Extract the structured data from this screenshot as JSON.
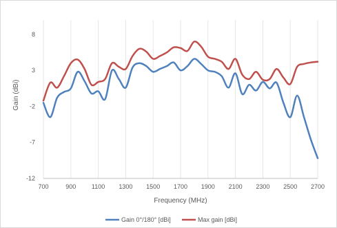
{
  "chart_data": {
    "type": "line",
    "title": "",
    "xlabel": "Frequency (MHz)",
    "ylabel": "Gain (dBi)",
    "xlim": [
      700,
      2700
    ],
    "ylim": [
      -12,
      10
    ],
    "xticks": [
      700,
      900,
      1100,
      1300,
      1500,
      1700,
      1900,
      2100,
      2300,
      2500,
      2700
    ],
    "yticks": [
      -12,
      -7,
      -2,
      3,
      8
    ],
    "grid": "vertical",
    "legend": "bottom",
    "series": [
      {
        "name": "Gain 0°/180° [dBi]",
        "color": "#4F81BD",
        "x": [
          700,
          750,
          800,
          850,
          900,
          950,
          1000,
          1050,
          1100,
          1150,
          1200,
          1250,
          1300,
          1350,
          1400,
          1450,
          1500,
          1550,
          1600,
          1650,
          1700,
          1750,
          1800,
          1850,
          1900,
          1950,
          2000,
          2050,
          2100,
          2150,
          2200,
          2250,
          2300,
          2350,
          2400,
          2450,
          2500,
          2550,
          2600,
          2650,
          2700
        ],
        "y": [
          -1.5,
          -3.5,
          -0.8,
          0.0,
          0.5,
          2.8,
          1.5,
          -0.2,
          0.1,
          -1.0,
          3.0,
          1.8,
          0.6,
          3.4,
          4.0,
          3.6,
          2.8,
          3.2,
          3.6,
          4.1,
          3.0,
          3.6,
          4.6,
          3.9,
          3.0,
          2.8,
          2.2,
          0.6,
          2.6,
          -0.3,
          1.0,
          0.2,
          1.4,
          0.5,
          1.3,
          -1.5,
          -3.5,
          -0.5,
          -3.5,
          -6.6,
          -9.2
        ]
      },
      {
        "name": "Max gain [dBi]",
        "color": "#C0504D",
        "x": [
          700,
          750,
          800,
          850,
          900,
          950,
          1000,
          1050,
          1100,
          1150,
          1200,
          1250,
          1300,
          1350,
          1400,
          1450,
          1500,
          1550,
          1600,
          1650,
          1700,
          1750,
          1800,
          1850,
          1900,
          1950,
          2000,
          2050,
          2100,
          2150,
          2200,
          2250,
          2300,
          2350,
          2400,
          2450,
          2500,
          2550,
          2600,
          2650,
          2700
        ],
        "y": [
          -1.2,
          1.3,
          0.6,
          2.2,
          4.0,
          4.5,
          3.2,
          1.0,
          1.4,
          1.8,
          4.0,
          3.5,
          3.2,
          5.0,
          6.0,
          5.6,
          4.6,
          5.0,
          5.5,
          6.2,
          6.1,
          5.7,
          7.0,
          6.3,
          4.9,
          4.6,
          4.2,
          3.2,
          4.6,
          2.4,
          1.8,
          2.8,
          1.7,
          1.8,
          3.2,
          2.0,
          1.1,
          3.5,
          3.9,
          4.1,
          4.2
        ]
      }
    ]
  }
}
